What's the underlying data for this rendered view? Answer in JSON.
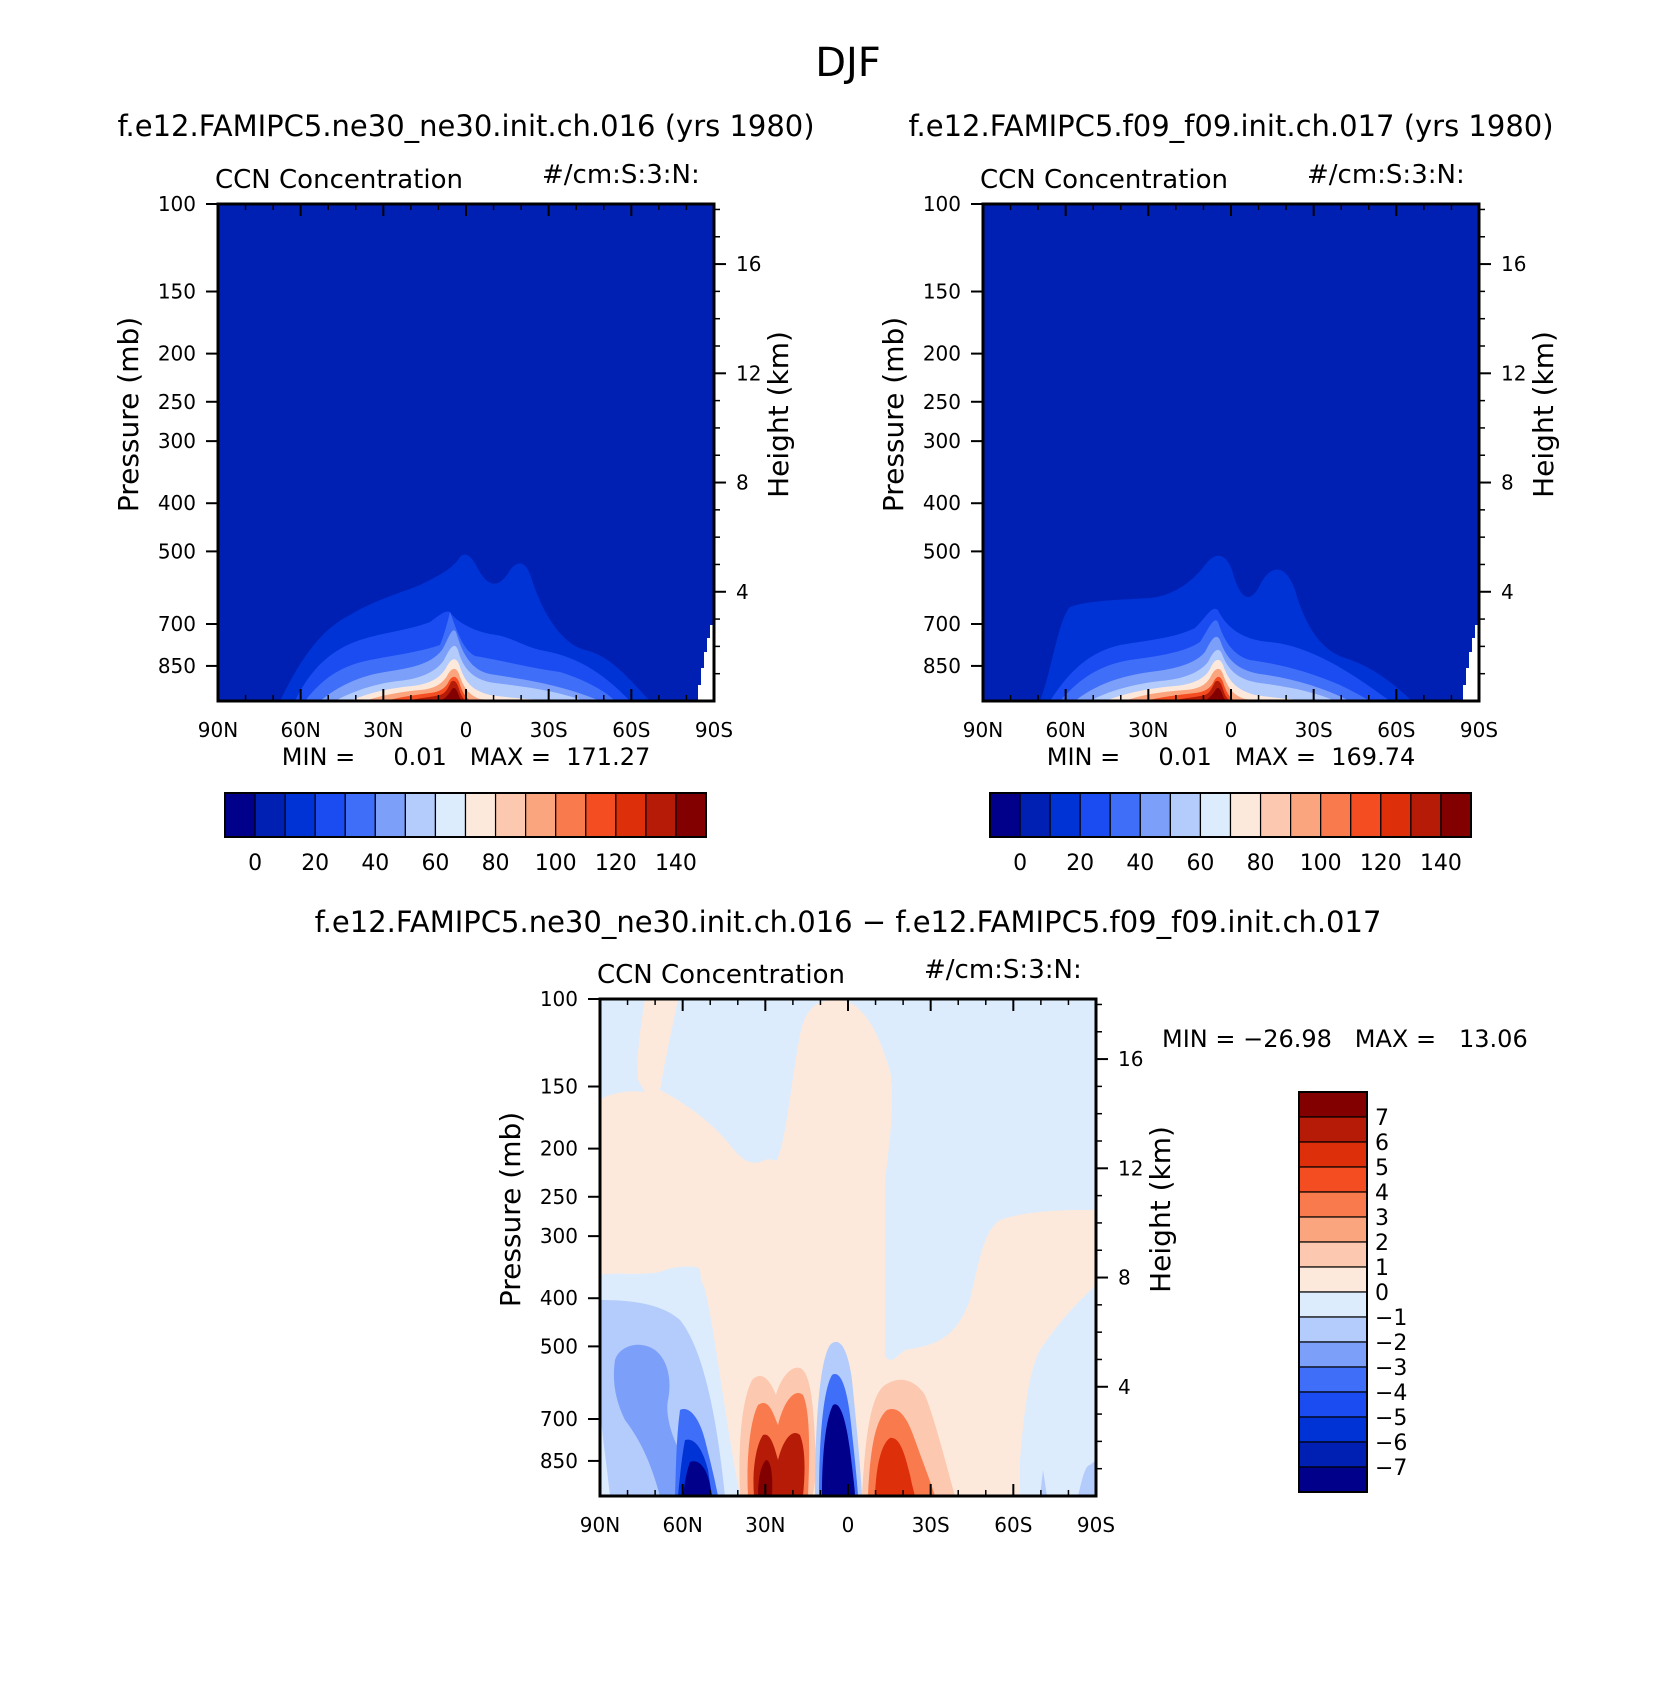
{
  "figure_title": "DJF",
  "chart_data": [
    {
      "type": "contour",
      "panel": "top-left",
      "title": "f.e12.FAMIPC5.ne30_ne30.init.ch.016 (yrs 1980)",
      "variable_label": "CCN Concentration",
      "units_label": "#/cm:S:3:N:",
      "xlabel": "",
      "ylabel": "Pressure (mb)",
      "ylabel_right": "Height (km)",
      "x_ticks": [
        "90N",
        "60N",
        "30N",
        "0",
        "30S",
        "60S",
        "90S"
      ],
      "x_tick_values": [
        90,
        60,
        30,
        0,
        -30,
        -60,
        -90
      ],
      "xlim": [
        90,
        -90
      ],
      "y_ticks": [
        "100",
        "150",
        "200",
        "250",
        "300",
        "400",
        "500",
        "700",
        "850"
      ],
      "y_tick_values": [
        100,
        150,
        200,
        250,
        300,
        400,
        500,
        700,
        850
      ],
      "ylim_mb": [
        100,
        1000
      ],
      "yscale": "log",
      "height_ticks": [
        "4",
        "8",
        "12",
        "16"
      ],
      "height_tick_values": [
        4,
        8,
        12,
        16
      ],
      "stats_text": "MIN =     0.01   MAX =  171.27",
      "min": 0.01,
      "max": 171.27,
      "colorbar": {
        "orientation": "horizontal",
        "colors": [
          "#00008b",
          "#0020b4",
          "#0033d6",
          "#1a4cf2",
          "#3f6ef8",
          "#7c9ffa",
          "#b4ccfb",
          "#dcecfd",
          "#fde9dc",
          "#fcc9b0",
          "#fba57f",
          "#f97a4d",
          "#f44d22",
          "#dd2f0a",
          "#b51b07",
          "#830000"
        ],
        "labels": [
          "0",
          "20",
          "40",
          "60",
          "80",
          "100",
          "120",
          "140"
        ]
      }
    },
    {
      "type": "contour",
      "panel": "top-right",
      "title": "f.e12.FAMIPC5.f09_f09.init.ch.017 (yrs 1980)",
      "variable_label": "CCN Concentration",
      "units_label": "#/cm:S:3:N:",
      "xlabel": "",
      "ylabel": "Pressure (mb)",
      "ylabel_right": "Height (km)",
      "x_ticks": [
        "90N",
        "60N",
        "30N",
        "0",
        "30S",
        "60S",
        "90S"
      ],
      "x_tick_values": [
        90,
        60,
        30,
        0,
        -30,
        -60,
        -90
      ],
      "xlim": [
        90,
        -90
      ],
      "y_ticks": [
        "100",
        "150",
        "200",
        "250",
        "300",
        "400",
        "500",
        "700",
        "850"
      ],
      "y_tick_values": [
        100,
        150,
        200,
        250,
        300,
        400,
        500,
        700,
        850
      ],
      "ylim_mb": [
        100,
        1000
      ],
      "yscale": "log",
      "height_ticks": [
        "4",
        "8",
        "12",
        "16"
      ],
      "height_tick_values": [
        4,
        8,
        12,
        16
      ],
      "stats_text": "MIN =     0.01   MAX =  169.74",
      "min": 0.01,
      "max": 169.74,
      "colorbar": {
        "orientation": "horizontal",
        "colors": [
          "#00008b",
          "#0020b4",
          "#0033d6",
          "#1a4cf2",
          "#3f6ef8",
          "#7c9ffa",
          "#b4ccfb",
          "#dcecfd",
          "#fde9dc",
          "#fcc9b0",
          "#fba57f",
          "#f97a4d",
          "#f44d22",
          "#dd2f0a",
          "#b51b07",
          "#830000"
        ],
        "labels": [
          "0",
          "20",
          "40",
          "60",
          "80",
          "100",
          "120",
          "140"
        ]
      }
    },
    {
      "type": "contour",
      "panel": "bottom",
      "title": "f.e12.FAMIPC5.ne30_ne30.init.ch.016 − f.e12.FAMIPC5.f09_f09.init.ch.017",
      "variable_label": "CCN Concentration",
      "units_label": "#/cm:S:3:N:",
      "xlabel": "",
      "ylabel": "Pressure (mb)",
      "ylabel_right": "Height (km)",
      "x_ticks": [
        "90N",
        "60N",
        "30N",
        "0",
        "30S",
        "60S",
        "90S"
      ],
      "x_tick_values": [
        90,
        60,
        30,
        0,
        -30,
        -60,
        -90
      ],
      "xlim": [
        90,
        -90
      ],
      "y_ticks": [
        "100",
        "150",
        "200",
        "250",
        "300",
        "400",
        "500",
        "700",
        "850"
      ],
      "y_tick_values": [
        100,
        150,
        200,
        250,
        300,
        400,
        500,
        700,
        850
      ],
      "ylim_mb": [
        100,
        1000
      ],
      "yscale": "log",
      "height_ticks": [
        "4",
        "8",
        "12",
        "16"
      ],
      "height_tick_values": [
        4,
        8,
        12,
        16
      ],
      "stats_text": "MIN = −26.98   MAX =   13.06",
      "min": -26.98,
      "max": 13.06,
      "colorbar": {
        "orientation": "vertical",
        "colors_top_to_bottom": [
          "#830000",
          "#b51b07",
          "#dd2f0a",
          "#f44d22",
          "#f97a4d",
          "#fba57f",
          "#fcc9b0",
          "#fde9dc",
          "#dcecfd",
          "#b4ccfb",
          "#7c9ffa",
          "#3f6ef8",
          "#1a4cf2",
          "#0033d6",
          "#0020b4",
          "#00008b"
        ],
        "labels_top_to_bottom": [
          "7",
          "6",
          "5",
          "4",
          "3",
          "2",
          "1",
          "0",
          "−1",
          "−2",
          "−3",
          "−4",
          "−5",
          "−6",
          "−7"
        ]
      }
    }
  ]
}
